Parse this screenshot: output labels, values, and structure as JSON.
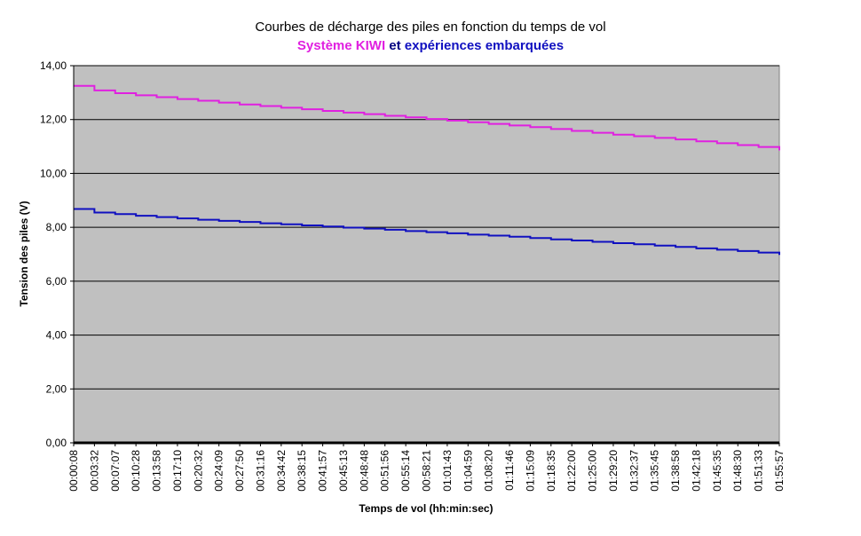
{
  "chart_data": {
    "type": "line",
    "title": "Courbes de décharge des piles en fonction du temps de vol",
    "subtitle": {
      "part1": "Système KIWI",
      "part2": " et ",
      "part3": "expériences embarquées"
    },
    "xlabel": "Temps de vol (hh:min:sec)",
    "ylabel": "Tension des piles (V)",
    "ylim": [
      0,
      14
    ],
    "yticks": [
      "0,00",
      "2,00",
      "4,00",
      "6,00",
      "8,00",
      "10,00",
      "12,00",
      "14,00"
    ],
    "grid": true,
    "legend": "none",
    "x": [
      "00:00:08",
      "00:03:32",
      "00:07:07",
      "00:10:28",
      "00:13:58",
      "00:17:10",
      "00:20:32",
      "00:24:09",
      "00:27:50",
      "00:31:16",
      "00:34:42",
      "00:38:15",
      "00:41:57",
      "00:45:13",
      "00:48:48",
      "00:51:56",
      "00:55:14",
      "00:58:21",
      "01:01:43",
      "01:04:59",
      "01:08:20",
      "01:11:46",
      "01:15:09",
      "01:18:35",
      "01:22:00",
      "01:25:00",
      "01:29:20",
      "01:32:37",
      "01:35:45",
      "01:38:58",
      "01:42:18",
      "01:45:35",
      "01:48:30",
      "01:51:33",
      "01:55:57"
    ],
    "series": [
      {
        "name": "Système KIWI",
        "color": "#e020e0",
        "values": [
          13.25,
          13.08,
          12.98,
          12.9,
          12.83,
          12.76,
          12.7,
          12.63,
          12.56,
          12.5,
          12.44,
          12.38,
          12.32,
          12.26,
          12.2,
          12.14,
          12.08,
          12.02,
          11.96,
          11.9,
          11.84,
          11.78,
          11.72,
          11.65,
          11.58,
          11.51,
          11.44,
          11.38,
          11.32,
          11.26,
          11.19,
          11.12,
          11.05,
          10.98,
          10.86
        ]
      },
      {
        "name": "expériences embarquées",
        "color": "#1010c0",
        "values": [
          8.68,
          8.55,
          8.49,
          8.43,
          8.38,
          8.33,
          8.28,
          8.24,
          8.2,
          8.15,
          8.11,
          8.07,
          8.03,
          7.99,
          7.95,
          7.91,
          7.86,
          7.82,
          7.78,
          7.73,
          7.69,
          7.65,
          7.6,
          7.55,
          7.51,
          7.46,
          7.41,
          7.37,
          7.32,
          7.27,
          7.22,
          7.17,
          7.12,
          7.06,
          6.98
        ]
      }
    ]
  }
}
